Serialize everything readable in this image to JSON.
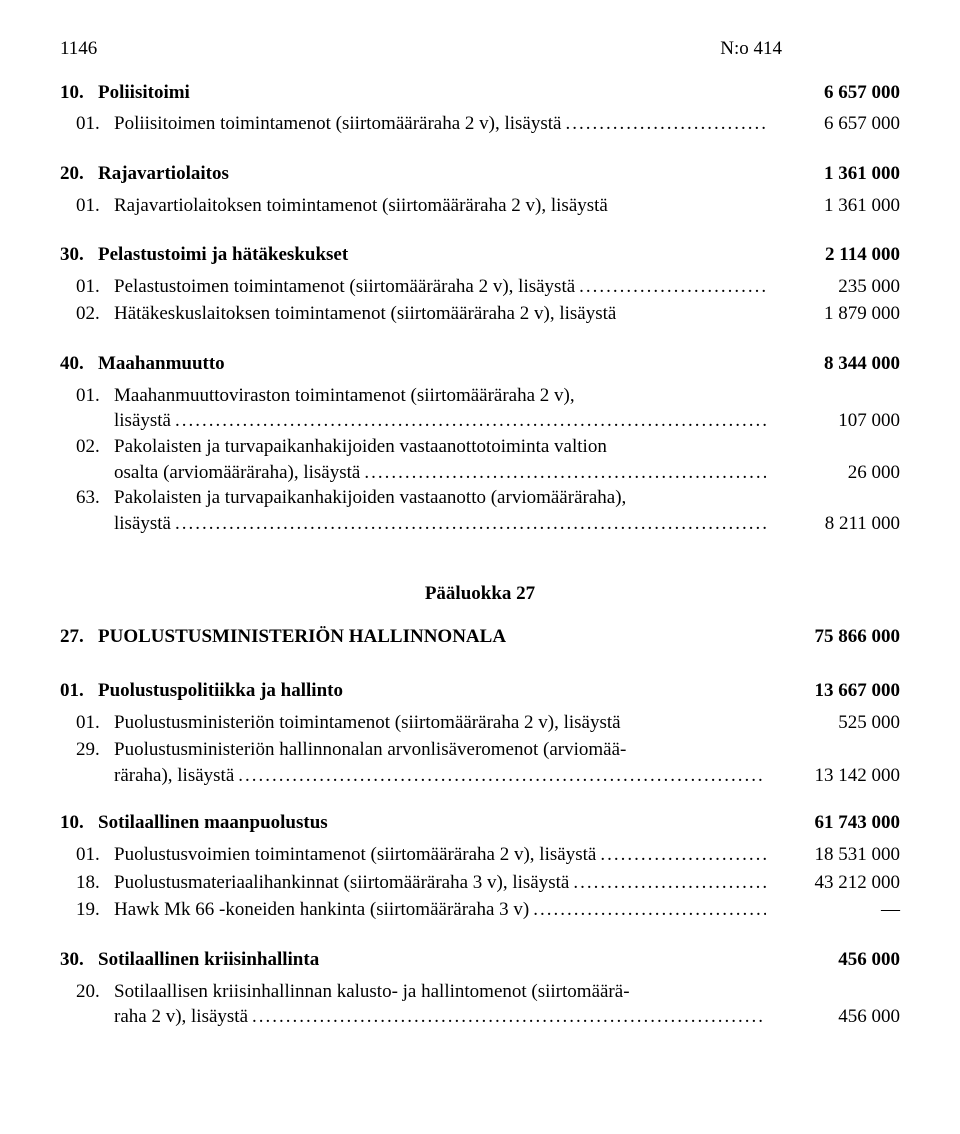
{
  "header": {
    "page_number": "1146",
    "doc_number": "N:o 414"
  },
  "sections": [
    {
      "num": "10.",
      "label": "Poliisitoimi",
      "value": "6 657 000",
      "lines": [
        {
          "num": "01.",
          "label": "Poliisitoimen toimintamenot (siirtomääräraha 2 v), lisäystä",
          "value": "6 657 000",
          "dotted": true
        }
      ]
    },
    {
      "num": "20.",
      "label": "Rajavartiolaitos",
      "value": "1 361 000",
      "lines": [
        {
          "num": "01.",
          "label": "Rajavartiolaitoksen toimintamenot (siirtomääräraha 2 v), lisäystä",
          "value": "1 361 000",
          "dotted": false
        }
      ]
    },
    {
      "num": "30.",
      "label": "Pelastustoimi ja hätäkeskukset",
      "value": "2 114 000",
      "lines": [
        {
          "num": "01.",
          "label": "Pelastustoimen toimintamenot (siirtomääräraha 2 v), lisäystä",
          "value": "235 000",
          "dotted": true
        },
        {
          "num": "02.",
          "label": "Hätäkeskuslaitoksen toimintamenot (siirtomääräraha 2 v), lisäystä",
          "value": "1 879 000",
          "dotted": false
        }
      ]
    },
    {
      "num": "40.",
      "label": "Maahanmuutto",
      "value": "8 344 000",
      "lines": [
        {
          "num": "01.",
          "label_lines": [
            "Maahanmuuttoviraston toimintamenot (siirtomääräraha 2 v),",
            "lisäystä"
          ],
          "value": "107 000",
          "dotted": true
        },
        {
          "num": "02.",
          "label_lines": [
            "Pakolaisten ja turvapaikanhakijoiden vastaanottotoiminta valtion",
            "osalta (arviomääräraha), lisäystä"
          ],
          "value": "26 000",
          "dotted": true
        },
        {
          "num": "63.",
          "label_lines": [
            "Pakolaisten ja turvapaikanhakijoiden vastaanotto (arviomääräraha),",
            "lisäystä"
          ],
          "value": "8 211 000",
          "dotted": true
        }
      ]
    }
  ],
  "chapter": {
    "heading": "Pääluokka 27",
    "title_num": "27.",
    "title_label": "PUOLUSTUSMINISTERIÖN HALLINNONALA",
    "title_value": "75 866 000",
    "sections": [
      {
        "num": "01.",
        "label": "Puolustuspolitiikka ja hallinto",
        "value": "13 667 000",
        "lines": [
          {
            "num": "01.",
            "label": "Puolustusministeriön toimintamenot (siirtomääräraha 2 v), lisäystä",
            "value": "525 000",
            "dotted": false
          },
          {
            "num": "29.",
            "label_lines": [
              "Puolustusministeriön hallinnonalan arvonlisäveromenot (arviomää-",
              "räraha), lisäystä"
            ],
            "value": "13 142 000",
            "dotted": true
          }
        ]
      },
      {
        "num": "10.",
        "label": "Sotilaallinen maanpuolustus",
        "value": "61 743 000",
        "lines": [
          {
            "num": "01.",
            "label": "Puolustusvoimien toimintamenot (siirtomääräraha 2 v), lisäystä",
            "value": "18 531 000",
            "dotted": true
          },
          {
            "num": "18.",
            "label": "Puolustusmateriaalihankinnat (siirtomääräraha 3 v), lisäystä",
            "value": "43 212 000",
            "dotted": true
          },
          {
            "num": "19.",
            "label": "Hawk Mk 66 -koneiden hankinta (siirtomääräraha 3 v)",
            "value": "—",
            "dotted": true
          }
        ]
      },
      {
        "num": "30.",
        "label": "Sotilaallinen kriisinhallinta",
        "value": "456 000",
        "lines": [
          {
            "num": "20.",
            "label_lines": [
              "Sotilaallisen kriisinhallinnan kalusto- ja hallintomenot (siirtomäärä-",
              "raha 2 v), lisäystä"
            ],
            "value": "456 000",
            "dotted": true
          }
        ]
      }
    ]
  }
}
